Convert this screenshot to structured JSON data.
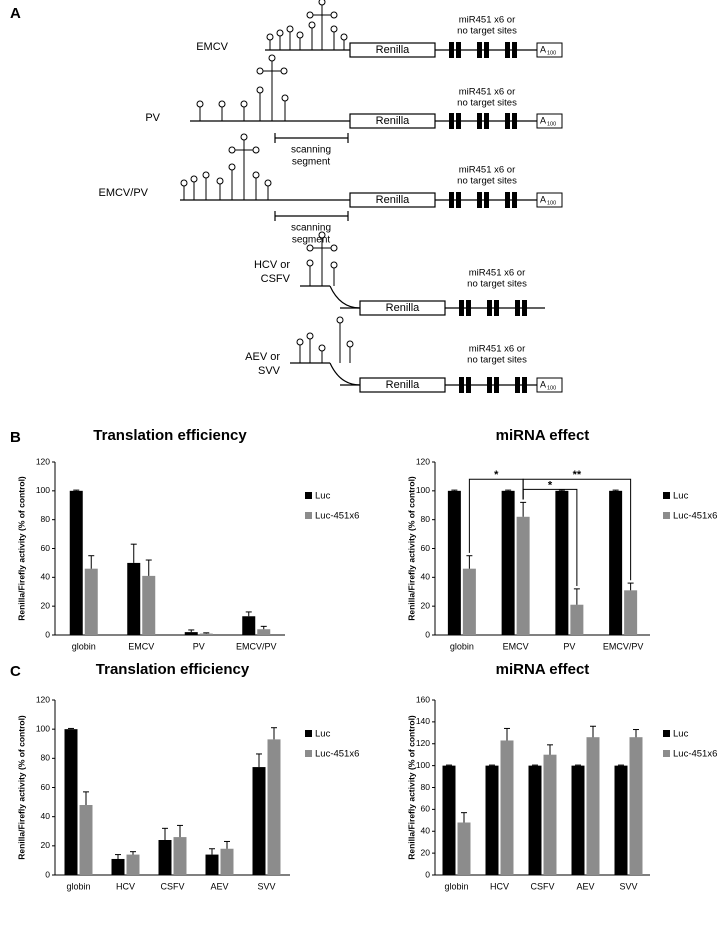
{
  "panels": [
    "A",
    "B",
    "C"
  ],
  "diagram": {
    "constructs": [
      {
        "label": [
          "EMCV"
        ],
        "reporter": "Renilla",
        "targets": [
          "miR451 x6 or",
          "no target sites"
        ],
        "tail": [
          "A",
          "100"
        ]
      },
      {
        "label": [
          "PV"
        ],
        "reporter": "Renilla",
        "targets": [
          "miR451 x6 or",
          "no target sites"
        ],
        "tail": [
          "A",
          "100"
        ],
        "scanning": [
          "scanning",
          "segment"
        ]
      },
      {
        "label": [
          "EMCV/PV"
        ],
        "reporter": "Renilla",
        "targets": [
          "miR451 x6 or",
          "no target sites"
        ],
        "tail": [
          "A",
          "100"
        ],
        "scanning": [
          "scanning",
          "segment"
        ]
      },
      {
        "label": [
          "HCV or",
          "CSFV"
        ],
        "reporter": "Renilla",
        "targets": [
          "miR451 x6 or",
          "no target sites"
        ]
      },
      {
        "label": [
          "AEV or",
          "SVV"
        ],
        "reporter": "Renilla",
        "targets": [
          "miR451 x6 or",
          "no target sites"
        ],
        "tail": [
          "A",
          "100"
        ]
      }
    ]
  },
  "chart_data": [
    {
      "type": "bar",
      "title": "Translation efficiency",
      "ylabel": "Renilla/Firefly activity (% of control)",
      "categories": [
        "globin",
        "EMCV",
        "PV",
        "EMCV/PV"
      ],
      "series": [
        {
          "name": "Luc",
          "color": "#000000",
          "values": [
            100,
            50,
            2,
            13
          ],
          "errors": [
            0.5,
            13,
            1.5,
            3
          ]
        },
        {
          "name": "Luc-451x6",
          "color": "#8c8c8c",
          "values": [
            46,
            41,
            1,
            4
          ],
          "errors": [
            9,
            11,
            0.5,
            2
          ]
        }
      ],
      "ylim": [
        0,
        120
      ],
      "yticks": [
        0,
        20,
        40,
        60,
        80,
        100,
        120
      ]
    },
    {
      "type": "bar",
      "title": "miRNA effect",
      "ylabel": "Renilla/Firefly activity (% of control)",
      "categories": [
        "globin",
        "EMCV",
        "PV",
        "EMCV/PV"
      ],
      "series": [
        {
          "name": "Luc",
          "color": "#000000",
          "values": [
            100,
            100,
            100,
            100
          ],
          "errors": [
            0.5,
            0.5,
            0.5,
            0.5
          ]
        },
        {
          "name": "Luc-451x6",
          "color": "#8c8c8c",
          "values": [
            46,
            82,
            21,
            31
          ],
          "errors": [
            9,
            10,
            11,
            5
          ]
        }
      ],
      "ylim": [
        0,
        120
      ],
      "yticks": [
        0,
        20,
        40,
        60,
        80,
        100,
        120
      ],
      "annotations": [
        "*",
        "**",
        "*"
      ]
    },
    {
      "type": "bar",
      "title": "Translation efficiency",
      "ylabel": "Renilla/Firefly activity (% of control)",
      "categories": [
        "globin",
        "HCV",
        "CSFV",
        "AEV",
        "SVV"
      ],
      "series": [
        {
          "name": "Luc",
          "color": "#000000",
          "values": [
            100,
            11,
            24,
            14,
            74
          ],
          "errors": [
            0.5,
            3,
            8,
            4,
            9
          ]
        },
        {
          "name": "Luc-451x6",
          "color": "#8c8c8c",
          "values": [
            48,
            14,
            26,
            18,
            93
          ],
          "errors": [
            9,
            2,
            8,
            5,
            8
          ]
        }
      ],
      "ylim": [
        0,
        120
      ],
      "yticks": [
        0,
        20,
        40,
        60,
        80,
        100,
        120
      ]
    },
    {
      "type": "bar",
      "title": "miRNA effect",
      "ylabel": "Renilla/Firefly activity (% of control)",
      "categories": [
        "globin",
        "HCV",
        "CSFV",
        "AEV",
        "SVV"
      ],
      "series": [
        {
          "name": "Luc",
          "color": "#000000",
          "values": [
            100,
            100,
            100,
            100,
            100
          ],
          "errors": [
            0.5,
            0.5,
            0.5,
            0.5,
            0.5
          ]
        },
        {
          "name": "Luc-451x6",
          "color": "#8c8c8c",
          "values": [
            48,
            123,
            110,
            126,
            126
          ],
          "errors": [
            9,
            11,
            9,
            10,
            7
          ]
        }
      ],
      "ylim": [
        0,
        160
      ],
      "yticks": [
        0,
        20,
        40,
        60,
        80,
        100,
        120,
        140,
        160
      ]
    }
  ]
}
